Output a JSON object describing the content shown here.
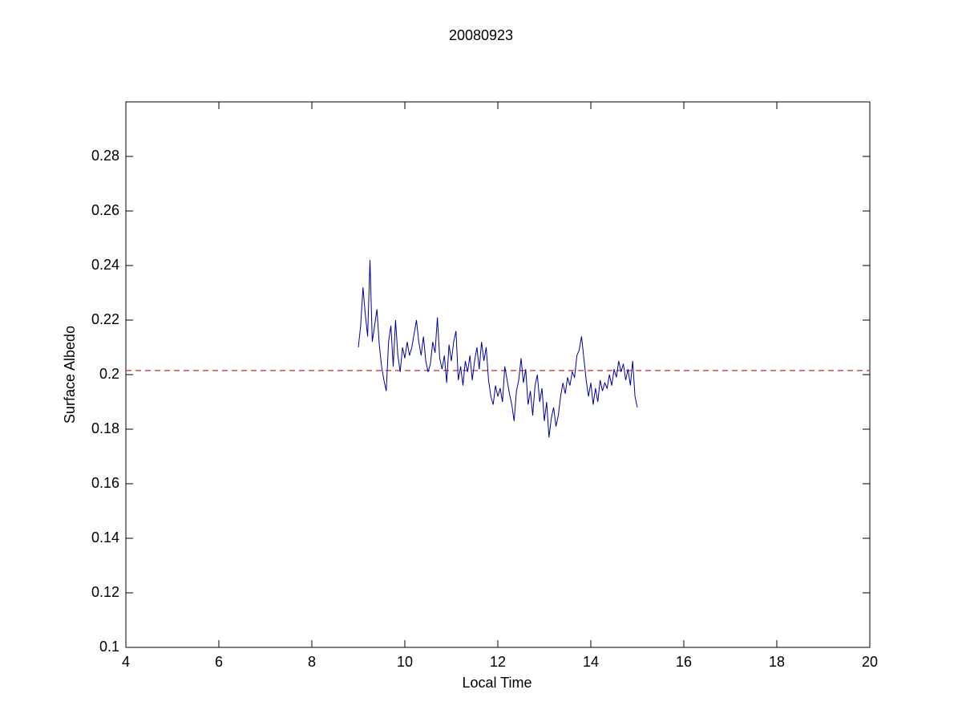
{
  "chart_data": {
    "type": "line",
    "title": "20080923",
    "xlabel": "Local Time",
    "ylabel": "Surface Albedo",
    "x": [
      9.0,
      9.05,
      9.1,
      9.15,
      9.2,
      9.25,
      9.3,
      9.35,
      9.4,
      9.45,
      9.5,
      9.55,
      9.6,
      9.65,
      9.7,
      9.75,
      9.8,
      9.85,
      9.9,
      9.95,
      10.0,
      10.05,
      10.1,
      10.15,
      10.2,
      10.25,
      10.3,
      10.35,
      10.4,
      10.45,
      10.5,
      10.55,
      10.6,
      10.65,
      10.7,
      10.75,
      10.8,
      10.85,
      10.9,
      10.95,
      11.0,
      11.05,
      11.1,
      11.15,
      11.2,
      11.25,
      11.3,
      11.35,
      11.4,
      11.45,
      11.5,
      11.55,
      11.6,
      11.65,
      11.7,
      11.75,
      11.8,
      11.85,
      11.9,
      11.95,
      12.0,
      12.05,
      12.1,
      12.15,
      12.2,
      12.25,
      12.3,
      12.35,
      12.4,
      12.45,
      12.5,
      12.55,
      12.6,
      12.65,
      12.7,
      12.75,
      12.8,
      12.85,
      12.9,
      12.95,
      13.0,
      13.05,
      13.1,
      13.15,
      13.2,
      13.25,
      13.3,
      13.35,
      13.4,
      13.45,
      13.5,
      13.55,
      13.6,
      13.65,
      13.7,
      13.75,
      13.8,
      13.85,
      13.9,
      13.95,
      14.0,
      14.05,
      14.1,
      14.15,
      14.2,
      14.25,
      14.3,
      14.35,
      14.4,
      14.45,
      14.5,
      14.55,
      14.6,
      14.65,
      14.7,
      14.75,
      14.8,
      14.85,
      14.9,
      14.95,
      15.0
    ],
    "series": [
      {
        "color": "#0000a0",
        "values": [
          0.21,
          0.218,
          0.232,
          0.222,
          0.214,
          0.242,
          0.212,
          0.218,
          0.224,
          0.211,
          0.203,
          0.198,
          0.194,
          0.212,
          0.218,
          0.203,
          0.22,
          0.207,
          0.201,
          0.21,
          0.206,
          0.212,
          0.207,
          0.21,
          0.215,
          0.22,
          0.212,
          0.207,
          0.214,
          0.205,
          0.201,
          0.204,
          0.212,
          0.208,
          0.221,
          0.206,
          0.202,
          0.207,
          0.197,
          0.211,
          0.205,
          0.212,
          0.216,
          0.198,
          0.203,
          0.196,
          0.205,
          0.201,
          0.207,
          0.198,
          0.205,
          0.21,
          0.202,
          0.212,
          0.205,
          0.21,
          0.198,
          0.192,
          0.189,
          0.196,
          0.192,
          0.195,
          0.19,
          0.203,
          0.198,
          0.193,
          0.189,
          0.183,
          0.194,
          0.198,
          0.206,
          0.197,
          0.202,
          0.189,
          0.194,
          0.185,
          0.196,
          0.2,
          0.19,
          0.195,
          0.183,
          0.19,
          0.177,
          0.184,
          0.188,
          0.181,
          0.185,
          0.192,
          0.197,
          0.193,
          0.199,
          0.196,
          0.201,
          0.199,
          0.207,
          0.209,
          0.214,
          0.206,
          0.198,
          0.192,
          0.197,
          0.189,
          0.195,
          0.19,
          0.198,
          0.194,
          0.197,
          0.195,
          0.2,
          0.196,
          0.202,
          0.199,
          0.205,
          0.201,
          0.204,
          0.198,
          0.202,
          0.196,
          0.205,
          0.192,
          0.188
        ]
      }
    ],
    "hline": {
      "value": 0.2015,
      "color": "#c03030"
    },
    "xlim": [
      4,
      20
    ],
    "xticks": [
      4,
      6,
      8,
      10,
      12,
      14,
      16,
      18,
      20
    ],
    "ylim": [
      0.1,
      0.3
    ],
    "yticks": [
      0.1,
      0.12,
      0.14,
      0.16,
      0.18,
      0.2,
      0.22,
      0.24,
      0.26,
      0.28
    ],
    "grid": false
  }
}
